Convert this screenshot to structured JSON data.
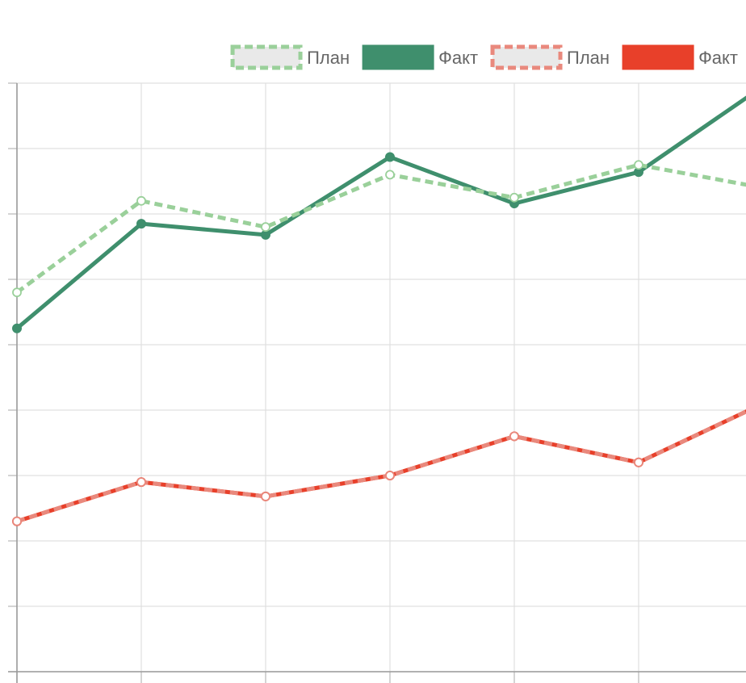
{
  "chart_data": {
    "type": "line",
    "title": "",
    "xlabel": "",
    "ylabel": "",
    "grid": true,
    "legend_position": "top-right",
    "x": [
      0,
      1,
      2,
      3,
      4,
      5,
      6
    ],
    "ylim": [
      0,
      9
    ],
    "series": [
      {
        "name": "План",
        "color": "#9ad09a",
        "style": "dashed",
        "point_style": "hollow",
        "values": [
          5.8,
          7.2,
          6.8,
          7.6,
          7.25,
          7.75,
          7.4
        ]
      },
      {
        "name": "Факт",
        "color": "#3f8f6d",
        "style": "solid",
        "point_style": "filled",
        "values": [
          5.25,
          6.85,
          6.68,
          7.87,
          7.16,
          7.64,
          8.95
        ]
      },
      {
        "name": "План",
        "color": "#e9897d",
        "style": "dashed",
        "point_style": "hollow",
        "values": [
          2.3,
          2.9,
          2.68,
          3.0,
          3.6,
          3.2,
          4.1
        ]
      },
      {
        "name": "Факт",
        "color": "#e8402a",
        "style": "solid",
        "point_style": "filled",
        "values": [
          2.3,
          2.9,
          2.68,
          3.0,
          3.6,
          3.2,
          4.1
        ]
      }
    ]
  }
}
